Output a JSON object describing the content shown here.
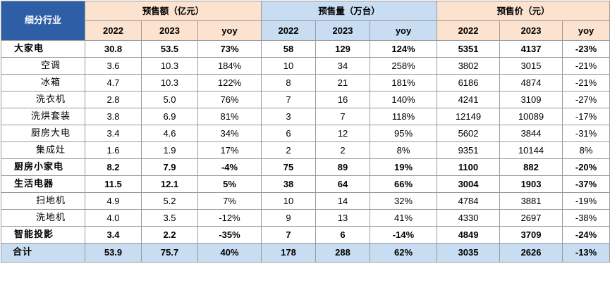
{
  "header": {
    "corner": "细分行业",
    "groups": [
      "预售额（亿元）",
      "预售量（万台）",
      "预售价（元）"
    ],
    "subs": [
      "2022",
      "2023",
      "yoy"
    ]
  },
  "rows": [
    {
      "name": "大家电",
      "bold": true,
      "v": [
        "30.8",
        "53.5",
        "73%",
        "58",
        "129",
        "124%",
        "5351",
        "4137",
        "-23%"
      ]
    },
    {
      "name": "空调",
      "bold": false,
      "v": [
        "3.6",
        "10.3",
        "184%",
        "10",
        "34",
        "258%",
        "3802",
        "3015",
        "-21%"
      ]
    },
    {
      "name": "冰箱",
      "bold": false,
      "v": [
        "4.7",
        "10.3",
        "122%",
        "8",
        "21",
        "181%",
        "6186",
        "4874",
        "-21%"
      ]
    },
    {
      "name": "洗衣机",
      "bold": false,
      "v": [
        "2.8",
        "5.0",
        "76%",
        "7",
        "16",
        "140%",
        "4241",
        "3109",
        "-27%"
      ]
    },
    {
      "name": "洗烘套装",
      "bold": false,
      "v": [
        "3.8",
        "6.9",
        "81%",
        "3",
        "7",
        "118%",
        "12149",
        "10089",
        "-17%"
      ]
    },
    {
      "name": "厨房大电",
      "bold": false,
      "v": [
        "3.4",
        "4.6",
        "34%",
        "6",
        "12",
        "95%",
        "5602",
        "3844",
        "-31%"
      ]
    },
    {
      "name": "集成灶",
      "bold": false,
      "v": [
        "1.6",
        "1.9",
        "17%",
        "2",
        "2",
        "8%",
        "9351",
        "10144",
        "8%"
      ]
    },
    {
      "name": "厨房小家电",
      "bold": true,
      "v": [
        "8.2",
        "7.9",
        "-4%",
        "75",
        "89",
        "19%",
        "1100",
        "882",
        "-20%"
      ]
    },
    {
      "name": "生活电器",
      "bold": true,
      "v": [
        "11.5",
        "12.1",
        "5%",
        "38",
        "64",
        "66%",
        "3004",
        "1903",
        "-37%"
      ]
    },
    {
      "name": "扫地机",
      "bold": false,
      "v": [
        "4.9",
        "5.2",
        "7%",
        "10",
        "14",
        "32%",
        "4784",
        "3881",
        "-19%"
      ]
    },
    {
      "name": "洗地机",
      "bold": false,
      "v": [
        "4.0",
        "3.5",
        "-12%",
        "9",
        "13",
        "41%",
        "4330",
        "2697",
        "-38%"
      ]
    },
    {
      "name": "智能投影",
      "bold": true,
      "v": [
        "3.4",
        "2.2",
        "-35%",
        "7",
        "6",
        "-14%",
        "4849",
        "3709",
        "-24%"
      ]
    }
  ],
  "total": {
    "name": "合计",
    "v": [
      "53.9",
      "75.7",
      "40%",
      "178",
      "288",
      "62%",
      "3035",
      "2626",
      "-13%"
    ]
  }
}
